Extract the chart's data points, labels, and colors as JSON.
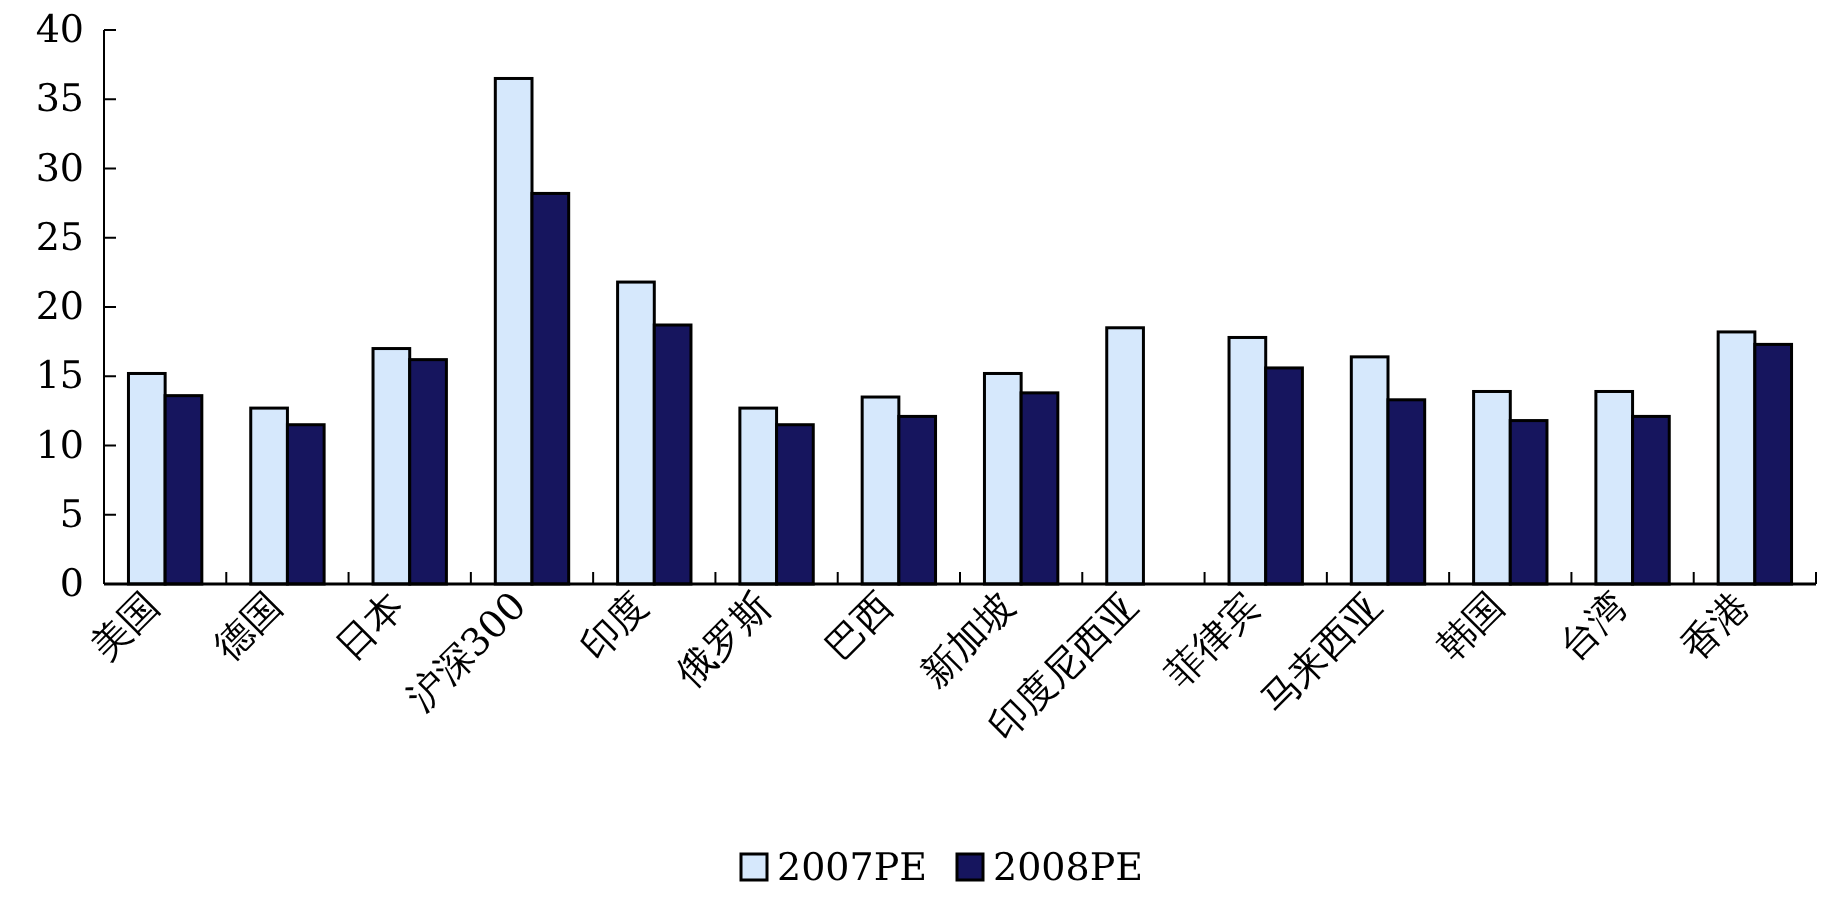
{
  "chart_data": {
    "type": "bar",
    "categories": [
      "美国",
      "德国",
      "日本",
      "沪深300",
      "印度",
      "俄罗斯",
      "巴西",
      "新加坡",
      "印度尼西亚",
      "菲律宾",
      "马来西亚",
      "韩国",
      "台湾",
      "香港"
    ],
    "series": [
      {
        "name": "2007PE",
        "color": "#d6e8fc",
        "values": [
          15.2,
          12.7,
          17.0,
          36.5,
          21.8,
          12.7,
          13.5,
          15.2,
          18.5,
          17.8,
          16.4,
          13.9,
          13.9,
          18.2
        ]
      },
      {
        "name": "2008PE",
        "color": "#16155e",
        "values": [
          13.6,
          11.5,
          16.2,
          28.2,
          18.7,
          11.5,
          12.1,
          13.8,
          null,
          15.6,
          13.3,
          11.8,
          12.1,
          17.3
        ]
      }
    ],
    "ylim": [
      0,
      40
    ],
    "yticks": [
      0,
      5,
      10,
      15,
      20,
      25,
      30,
      35,
      40
    ],
    "grid": false,
    "legend": "bottom"
  }
}
